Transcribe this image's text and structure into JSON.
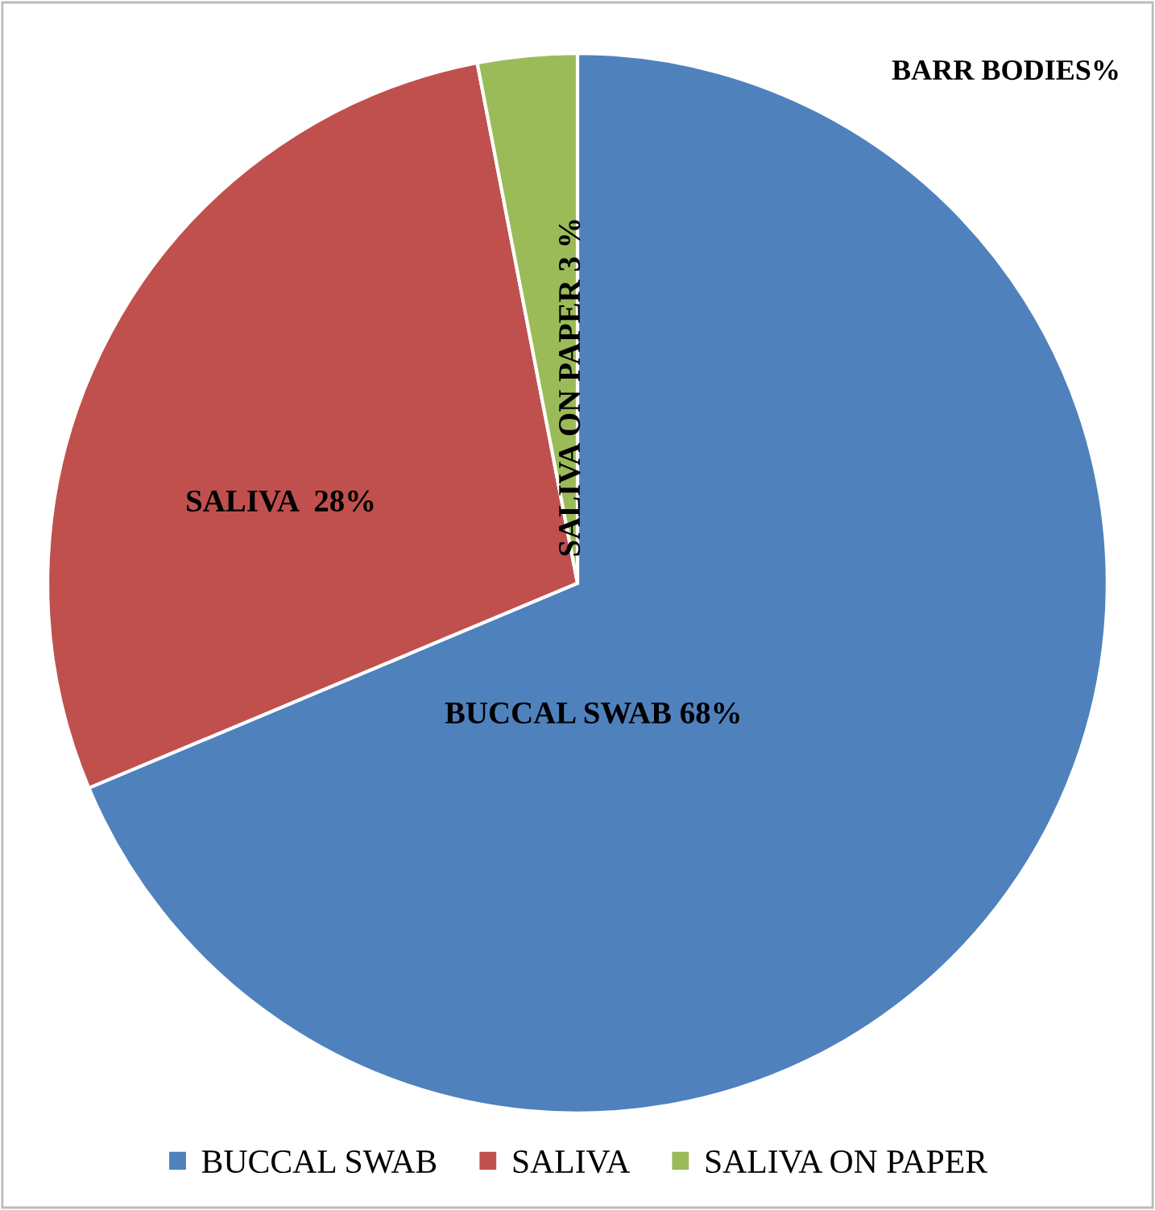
{
  "chart_data": {
    "type": "pie",
    "title": "BARR BODIES%",
    "categories": [
      "BUCCAL SWAB",
      "SALIVA",
      "SALIVA ON PAPER"
    ],
    "values": [
      68,
      28,
      3
    ],
    "colors": [
      "#4f81bd",
      "#c0504d",
      "#9bbb59"
    ],
    "value_labels": [
      "BUCCAL SWAB 68%",
      "SALIVA  28%",
      "SALIVA ON PAPER 3 %"
    ],
    "legend": "bottom"
  }
}
